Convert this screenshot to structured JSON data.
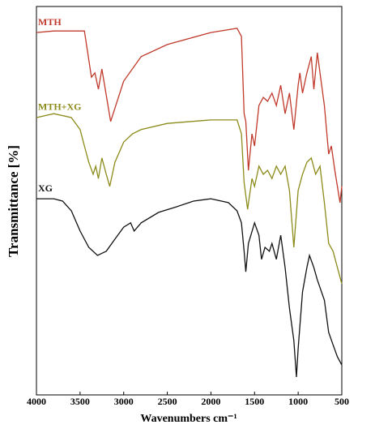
{
  "chart_data": {
    "type": "line",
    "ylabel": "Transmittance [%]",
    "xlabel": "Wavenumbers cm⁻¹",
    "xlim": [
      4000,
      500
    ],
    "xticks": [
      4000,
      3500,
      3000,
      2500,
      2000,
      1500,
      1000,
      500
    ],
    "ylim": [
      0,
      100
    ],
    "series": [
      {
        "name": "MTH",
        "color": "#c0392b",
        "x": [
          4000,
          3800,
          3450,
          3370,
          3330,
          3290,
          3250,
          3150,
          3000,
          2800,
          2500,
          2000,
          1700,
          1650,
          1620,
          1600,
          1570,
          1530,
          1500,
          1450,
          1400,
          1350,
          1300,
          1250,
          1200,
          1150,
          1100,
          1050,
          1000,
          980,
          950,
          900,
          850,
          820,
          780,
          750,
          700,
          650,
          620,
          580,
          520,
          500
        ],
        "values": [
          93.3,
          93.7,
          93.7,
          81.8,
          82.9,
          78.7,
          83.9,
          70.4,
          80.8,
          87.1,
          90.2,
          93.3,
          94.4,
          92.3,
          72.4,
          70.4,
          57.8,
          67.2,
          64.1,
          74.5,
          76.6,
          75.6,
          77.7,
          74.5,
          79.7,
          72.4,
          77.7,
          68.3,
          79.7,
          82.9,
          77.7,
          82.9,
          87.1,
          78.7,
          88.1,
          82.9,
          74.5,
          62.0,
          64.1,
          57.8,
          49.5,
          53.7
        ]
      },
      {
        "name": "MTH+XG",
        "color": "#8b8b1a",
        "x": [
          4000,
          3800,
          3600,
          3500,
          3450,
          3400,
          3350,
          3320,
          3290,
          3250,
          3200,
          3160,
          3100,
          3000,
          2900,
          2800,
          2500,
          2000,
          1700,
          1650,
          1620,
          1580,
          1530,
          1500,
          1450,
          1400,
          1350,
          1300,
          1250,
          1200,
          1150,
          1100,
          1050,
          1000,
          950,
          900,
          850,
          800,
          750,
          700,
          650,
          600,
          550,
          500
        ],
        "values": [
          71.4,
          72.4,
          71.4,
          68.3,
          64.1,
          59.9,
          56.8,
          58.9,
          55.7,
          61.0,
          56.8,
          53.7,
          59.9,
          65.1,
          67.2,
          68.3,
          69.9,
          70.8,
          70.8,
          67.2,
          54.7,
          47.8,
          55.7,
          53.7,
          58.9,
          56.8,
          57.8,
          55.7,
          58.9,
          56.8,
          58.9,
          52.6,
          38.0,
          52.6,
          56.8,
          59.9,
          61.0,
          56.8,
          58.9,
          49.5,
          39.0,
          37.0,
          32.8,
          28.6
        ]
      },
      {
        "name": "XG",
        "color": "#111111",
        "x": [
          4000,
          3800,
          3700,
          3600,
          3500,
          3400,
          3300,
          3200,
          3100,
          3000,
          2920,
          2880,
          2800,
          2600,
          2400,
          2200,
          2000,
          1800,
          1700,
          1650,
          1620,
          1600,
          1570,
          1500,
          1450,
          1420,
          1380,
          1330,
          1300,
          1250,
          1200,
          1150,
          1100,
          1050,
          1020,
          1000,
          950,
          900,
          870,
          820,
          780,
          700,
          650,
          600,
          550,
          500
        ],
        "values": [
          50.5,
          50.5,
          49.9,
          47.4,
          42.2,
          38.0,
          35.9,
          37.0,
          40.1,
          43.2,
          44.3,
          42.2,
          44.3,
          47.0,
          48.4,
          49.9,
          50.5,
          49.5,
          47.4,
          44.3,
          37.0,
          31.7,
          39.0,
          44.3,
          41.1,
          34.9,
          38.0,
          37.0,
          39.0,
          34.9,
          41.1,
          32.8,
          22.3,
          14.0,
          4.6,
          11.9,
          26.5,
          32.8,
          35.9,
          32.8,
          29.6,
          24.4,
          16.1,
          12.9,
          9.8,
          7.7
        ]
      }
    ]
  }
}
